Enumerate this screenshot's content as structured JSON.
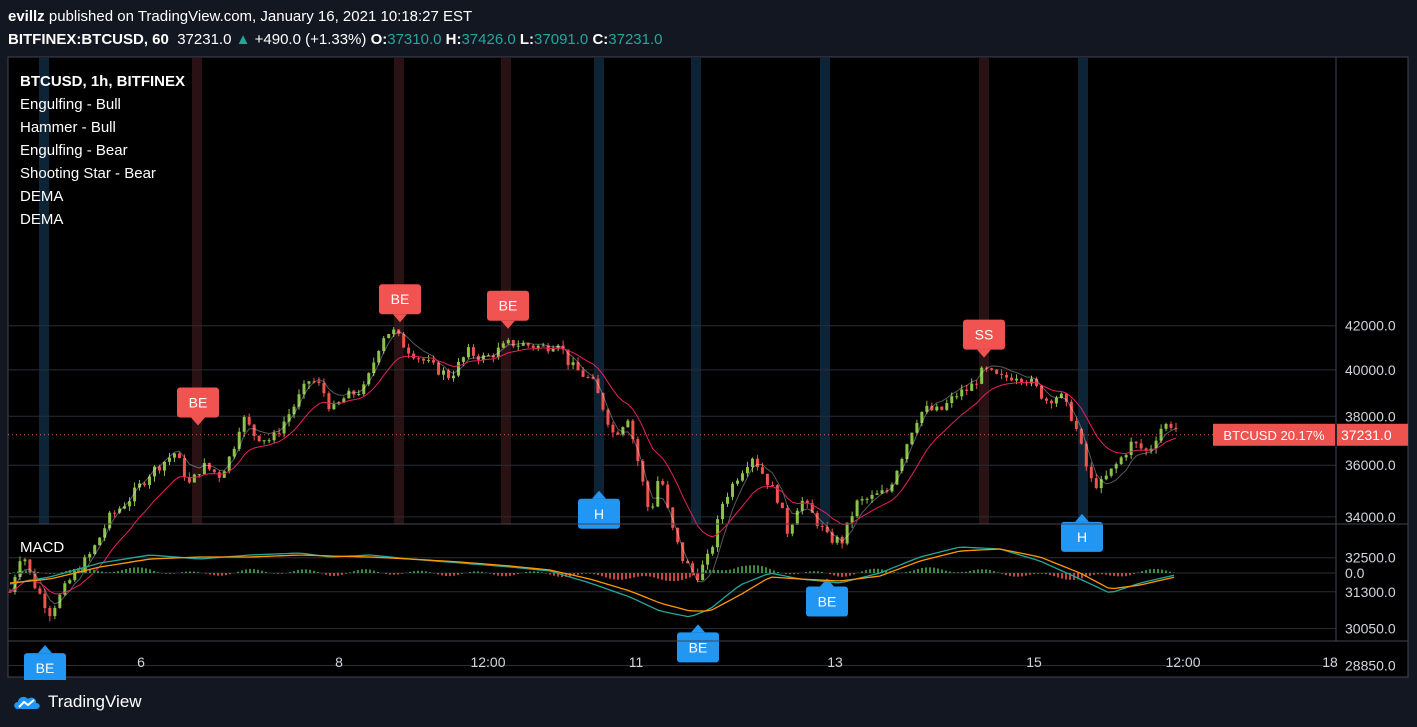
{
  "header": {
    "author": "evillz",
    "published_text": "published on TradingView.com, January 16, 2021 10:18:27 EST",
    "symbol_line": "BITFINEX:BTCUSD, 60",
    "last_price": "37231.0",
    "change": "+490.0 (+1.33%)",
    "open_label": "O:",
    "open": "37310.0",
    "high_label": "H:",
    "high": "37426.0",
    "low_label": "L:",
    "low": "37091.0",
    "close_label": "C:",
    "close": "37231.0"
  },
  "legend": {
    "title": "BTCUSD, 1h, BITFINEX",
    "items": [
      "Engulfing - Bull",
      "Hammer - Bull",
      "Engulfing - Bear",
      "Shooting Star - Bear",
      "DEMA",
      "DEMA"
    ]
  },
  "price_tag": {
    "label": "BTCUSD 20.17%",
    "value": "37231.0"
  },
  "macd_label": "MACD",
  "footer": {
    "brand": "TradingView"
  },
  "colors": {
    "background": "#131722",
    "bull": "#26a69a",
    "candle_up": "#8bc34a",
    "candle_down": "#ef5350",
    "dema_fast": "#ffffff",
    "dema_slow": "#e91e63",
    "signal_bear": "#f05350",
    "signal_bull": "#2196f3",
    "macd_line": "#26a69a",
    "signal_line": "#ff9800"
  },
  "chart_data": {
    "type": "candlestick",
    "symbol": "BTCUSD",
    "interval": "1h",
    "exchange": "BITFINEX",
    "y_scale": "log",
    "ylim": [
      28200,
      43500
    ],
    "y_ticks": [
      "42000.0",
      "40000.0",
      "38000.0",
      "36000.0",
      "34000.0",
      "32500.0",
      "31300.0",
      "30050.0",
      "28850.0"
    ],
    "x_ticks": [
      "6",
      "8",
      "12:00",
      "11",
      "13",
      "15",
      "12:00",
      "18"
    ],
    "close_path": {
      "t": [
        0,
        12,
        22,
        40,
        60,
        82,
        100,
        120,
        140,
        165,
        180,
        192,
        210,
        222,
        232,
        245,
        262,
        282,
        300,
        312,
        322,
        335,
        355,
        372,
        382,
        396,
        420,
        440,
        458,
        475,
        500,
        520,
        535,
        548,
        560,
        582,
        592,
        604,
        618,
        630,
        640,
        650,
        660,
        672,
        686,
        700,
        713,
        728,
        742,
        754,
        768,
        778,
        790,
        804,
        818,
        832,
        846,
        860,
        878,
        894,
        905,
        914,
        930,
        946,
        960,
        974,
        990,
        1008,
        1020,
        1036,
        1050,
        1064,
        1080,
        1090,
        1108,
        1122,
        1138,
        1150,
        1160,
        1174
      ],
      "price": [
        31300,
        32800,
        31700,
        30600,
        31700,
        32700,
        34000,
        34700,
        35700,
        36500,
        35200,
        36000,
        35600,
        36500,
        38000,
        37200,
        37000,
        38300,
        39600,
        39200,
        38200,
        38800,
        39200,
        41500,
        41800,
        41000,
        40200,
        39700,
        40800,
        40500,
        41200,
        41100,
        41000,
        41300,
        40200,
        39500,
        38500,
        37200,
        38000,
        35800,
        34000,
        35800,
        33800,
        32500,
        31800,
        32600,
        34600,
        35600,
        36400,
        35600,
        34700,
        33400,
        34700,
        34000,
        33200,
        33100,
        34500,
        34700,
        35000,
        36600,
        37800,
        38300,
        38200,
        38900,
        39200,
        40000,
        39600,
        39800,
        39500,
        38700,
        38900,
        37800,
        35400,
        35200,
        36100,
        36900,
        36500,
        37500,
        37700,
        37231
      ]
    },
    "candles_count": 235,
    "signals": [
      {
        "code": "BE",
        "type": "Engulfing - Bear",
        "x": 198,
        "price": 37200
      },
      {
        "code": "BE",
        "type": "Engulfing - Bear",
        "x": 400,
        "price": 41700
      },
      {
        "code": "BE",
        "type": "Engulfing - Bear",
        "x": 508,
        "price": 41400
      },
      {
        "code": "SS",
        "type": "Shooting Star - Bear",
        "x": 984,
        "price": 40100
      },
      {
        "code": "BE",
        "type": "Engulfing - Bull",
        "x": 45,
        "price": 30100
      },
      {
        "code": "H",
        "type": "Hammer - Bull",
        "x": 599,
        "price": 35700
      },
      {
        "code": "BE",
        "type": "Engulfing - Bull",
        "x": 698,
        "price": 30800
      },
      {
        "code": "BE",
        "type": "Engulfing - Bull",
        "x": 827,
        "price": 32400
      },
      {
        "code": "H",
        "type": "Hammer - Bull",
        "x": 1082,
        "price": 34800
      }
    ],
    "macd": {
      "zero_label": "0.0",
      "t": [
        0,
        40,
        90,
        140,
        190,
        240,
        290,
        320,
        360,
        400,
        450,
        500,
        540,
        580,
        620,
        650,
        680,
        700,
        730,
        760,
        790,
        830,
        870,
        910,
        950,
        990,
        1030,
        1070,
        1100,
        1130,
        1174
      ],
      "macd": [
        -0.55,
        -0.2,
        0.5,
        0.9,
        0.7,
        0.9,
        1.0,
        0.8,
        0.9,
        0.7,
        0.5,
        0.3,
        0.1,
        -0.5,
        -1.2,
        -1.9,
        -2.2,
        -1.8,
        -0.6,
        0.0,
        -0.3,
        -0.5,
        0.0,
        0.8,
        1.3,
        1.2,
        0.6,
        -0.3,
        -1.0,
        -0.5,
        0.0
      ],
      "signal": [
        -0.5,
        -0.3,
        0.3,
        0.7,
        0.8,
        0.8,
        0.9,
        0.85,
        0.8,
        0.7,
        0.55,
        0.35,
        0.15,
        -0.3,
        -0.9,
        -1.5,
        -1.9,
        -1.9,
        -1.1,
        -0.2,
        -0.3,
        -0.4,
        -0.15,
        0.6,
        1.1,
        1.2,
        0.8,
        0.0,
        -0.8,
        -0.6,
        -0.1
      ]
    }
  }
}
